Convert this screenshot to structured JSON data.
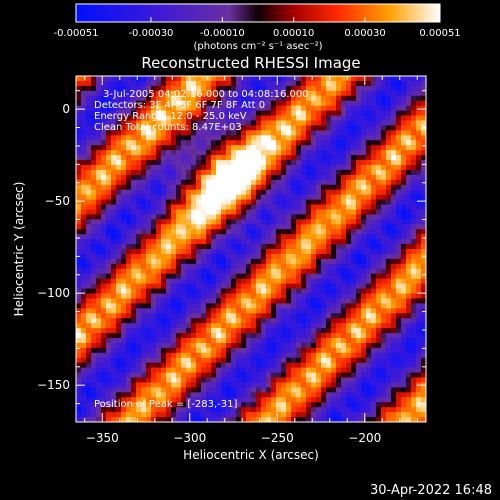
{
  "chart_data": {
    "type": "heatmap",
    "title": "Reconstructed RHESSI Image",
    "xlabel": "Heliocentric X (arcsec)",
    "ylabel": "Heliocentric Y (arcsec)",
    "xlim": [
      -365,
      -165
    ],
    "ylim": [
      -170,
      18
    ],
    "x_ticks": [
      -350,
      -300,
      -250,
      -200
    ],
    "y_ticks": [
      0,
      -50,
      -100,
      -150
    ],
    "colorbar": {
      "min": -0.00051,
      "max": 0.00051,
      "ticks": [
        -0.00051,
        -0.0003,
        -0.0001,
        0.0001,
        0.0003,
        0.00051
      ],
      "tick_labels": [
        "-0.00051",
        "-0.00030",
        "-0.00010",
        "0.00010",
        "0.00030",
        "0.00051"
      ],
      "unit_label": "(photons cm⁻² s⁻¹ asec⁻²)"
    },
    "annotations": [
      "3-Jul-2005 04:02:16.000 to 04:08:16.000",
      "Detectors: 3F 4F 5F 6F 7F 8F Att 0",
      "Energy Range: 12.0 - 25.0 keV",
      "Clean    Total counts: 8.47E+03"
    ],
    "peak_label": "Position of Peak = [-283,-31]",
    "peak": [
      -283,
      -31
    ],
    "pattern": "diagonal stripes (alternating positive/negative flux) oriented lower-left to upper-right"
  },
  "timestamp": "30-Apr-2022 16:48",
  "colors": {
    "background": "#000000",
    "foreground": "#ffffff"
  }
}
